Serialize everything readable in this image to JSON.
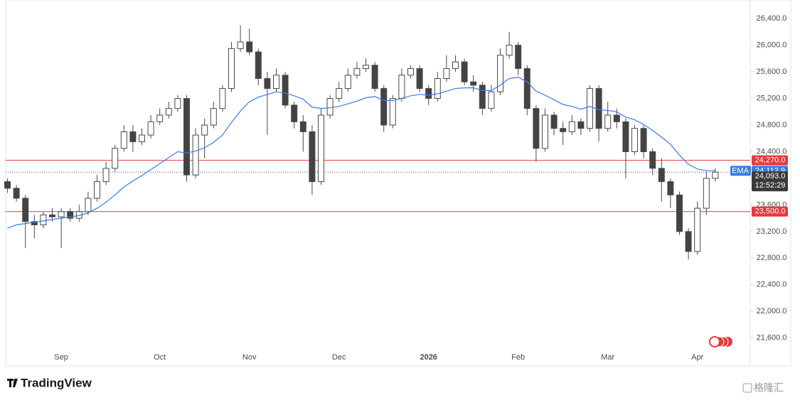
{
  "chart_data": {
    "type": "candlestick",
    "categories": [
      null,
      null,
      null,
      null,
      null,
      null,
      "Sep",
      null,
      null,
      null,
      null,
      null,
      null,
      null,
      null,
      null,
      null,
      "Oct",
      null,
      null,
      null,
      null,
      null,
      null,
      null,
      null,
      null,
      "Nov",
      null,
      null,
      null,
      null,
      null,
      null,
      null,
      null,
      null,
      "Dec",
      null,
      null,
      null,
      null,
      null,
      null,
      null,
      null,
      null,
      "2026",
      null,
      null,
      null,
      null,
      null,
      null,
      null,
      null,
      null,
      "Feb",
      null,
      null,
      null,
      null,
      null,
      null,
      null,
      null,
      null,
      "Mar",
      null,
      null,
      null,
      null,
      null,
      null,
      null,
      null,
      null,
      "Apr",
      null,
      null
    ],
    "open": [
      23950,
      23850,
      23700,
      23350,
      23300,
      23450,
      23420,
      23500,
      23400,
      23500,
      23700,
      23950,
      24150,
      24450,
      24700,
      24550,
      24650,
      24850,
      24950,
      25050,
      25200,
      24050,
      24650,
      24800,
      25050,
      25350,
      25950,
      26050,
      25900,
      25500,
      25350,
      25550,
      25100,
      24850,
      24700,
      23950,
      24950,
      25200,
      25350,
      25550,
      25650,
      25700,
      25350,
      24800,
      25200,
      25550,
      25650,
      25350,
      25200,
      25500,
      25650,
      25750,
      25450,
      25400,
      25050,
      25300,
      25850,
      26000,
      25650,
      25050,
      24450,
      24950,
      24750,
      24700,
      24850,
      24750,
      25350,
      24750,
      24950,
      24850,
      24400,
      24750,
      24400,
      24150,
      23950,
      23750,
      23200,
      22900,
      23550,
      24000
    ],
    "high": [
      24000,
      23900,
      23750,
      23450,
      23500,
      23550,
      23550,
      23550,
      23600,
      23800,
      24050,
      24250,
      24500,
      24800,
      24800,
      24750,
      24950,
      25050,
      25150,
      25250,
      25250,
      24750,
      24900,
      25150,
      25400,
      26050,
      26300,
      26250,
      25950,
      25600,
      25650,
      25600,
      25150,
      24950,
      24800,
      25050,
      25250,
      25450,
      25650,
      25750,
      25800,
      25750,
      25400,
      25250,
      25650,
      25700,
      25700,
      25400,
      25600,
      25850,
      25850,
      25800,
      25550,
      25450,
      25400,
      25950,
      26200,
      26050,
      25700,
      25100,
      25050,
      25000,
      24850,
      24950,
      24900,
      25400,
      25400,
      25150,
      25050,
      24900,
      24800,
      24800,
      24450,
      24300,
      24000,
      23800,
      23250,
      23650,
      24100,
      24150
    ],
    "low": [
      23780,
      23650,
      22950,
      23100,
      23250,
      23350,
      22950,
      23350,
      23350,
      23450,
      23650,
      23900,
      24100,
      24400,
      24400,
      24500,
      24600,
      24800,
      24900,
      25000,
      23950,
      24000,
      24300,
      24750,
      25000,
      25300,
      25900,
      25850,
      25400,
      24650,
      25300,
      25050,
      24750,
      24400,
      23750,
      23900,
      24900,
      25150,
      25300,
      25500,
      25600,
      25300,
      24700,
      24750,
      25150,
      25500,
      25300,
      25100,
      25150,
      25450,
      25600,
      25400,
      25300,
      24950,
      25000,
      25250,
      25800,
      25550,
      24950,
      24250,
      24400,
      24650,
      24500,
      24650,
      24650,
      24700,
      24550,
      24700,
      24750,
      24000,
      24350,
      24300,
      24050,
      23650,
      23550,
      23150,
      22780,
      22850,
      23450,
      23950
    ],
    "close": [
      23850,
      23700,
      23350,
      23300,
      23450,
      23420,
      23500,
      23400,
      23500,
      23700,
      23950,
      24150,
      24450,
      24700,
      24550,
      24650,
      24850,
      24950,
      25050,
      25200,
      24050,
      24650,
      24800,
      25050,
      25350,
      25950,
      26050,
      25900,
      25500,
      25350,
      25550,
      25100,
      24850,
      24700,
      23950,
      24950,
      25200,
      25350,
      25550,
      25650,
      25700,
      25350,
      24800,
      25200,
      25550,
      25650,
      25350,
      25200,
      25500,
      25650,
      25750,
      25450,
      25400,
      25050,
      25300,
      25850,
      26000,
      25650,
      25050,
      24450,
      24950,
      24750,
      24700,
      24850,
      24750,
      25350,
      24750,
      24950,
      24850,
      24400,
      24750,
      24400,
      24150,
      23950,
      23750,
      23200,
      22900,
      23550,
      24000,
      24093
    ],
    "up_color": "#ffffff",
    "down_color": "#434343",
    "wick_color": "#4a4a4a",
    "ema": {
      "name": "EMA",
      "color": "#3d7be0",
      "value_label": "24,112.9",
      "values": [
        23250,
        23300,
        23320,
        23340,
        23360,
        23380,
        23400,
        23420,
        23440,
        23480,
        23550,
        23640,
        23750,
        23870,
        23960,
        24040,
        24130,
        24220,
        24310,
        24400,
        24380,
        24410,
        24460,
        24540,
        24650,
        24840,
        25010,
        25150,
        25220,
        25260,
        25300,
        25280,
        25240,
        25190,
        25070,
        25050,
        25060,
        25080,
        25120,
        25160,
        25210,
        25230,
        25170,
        25170,
        25200,
        25240,
        25260,
        25250,
        25270,
        25310,
        25350,
        25360,
        25360,
        25320,
        25320,
        25400,
        25500,
        25520,
        25450,
        25310,
        25250,
        25180,
        25110,
        25080,
        25040,
        25080,
        25030,
        25020,
        25000,
        24920,
        24880,
        24810,
        24720,
        24620,
        24510,
        24350,
        24210,
        24140,
        24115,
        24112.9
      ]
    },
    "levels": [
      {
        "value": 24270,
        "label": "24,270.0",
        "color": "#e8383d"
      },
      {
        "value": 23500,
        "label": "23,500.0",
        "color": "#e8383d"
      }
    ],
    "last_price": {
      "value": 24093,
      "label": "24,093.0",
      "countdown": "12:52:29"
    },
    "ylim": [
      21180,
      26680
    ],
    "yticks": [
      {
        "value": 21600,
        "label": "21,600.0"
      },
      {
        "value": 22000,
        "label": "22,000.0"
      },
      {
        "value": 22400,
        "label": "22,400.0"
      },
      {
        "value": 22800,
        "label": "22,800.0"
      },
      {
        "value": 23200,
        "label": "23,200.0"
      },
      {
        "value": 23600,
        "label": "23,600.0"
      },
      {
        "value": 24000,
        "label": "24,000.0"
      },
      {
        "value": 24400,
        "label": "24,400.0"
      },
      {
        "value": 24800,
        "label": "24,800.0"
      },
      {
        "value": 25200,
        "label": "25,200.0"
      },
      {
        "value": 25600,
        "label": "25,600.0"
      },
      {
        "value": 26000,
        "label": "26,000.0"
      },
      {
        "value": 26400,
        "label": "26,400.0"
      }
    ]
  },
  "footer": {
    "brand": "TradingView",
    "watermark": "格隆汇"
  }
}
